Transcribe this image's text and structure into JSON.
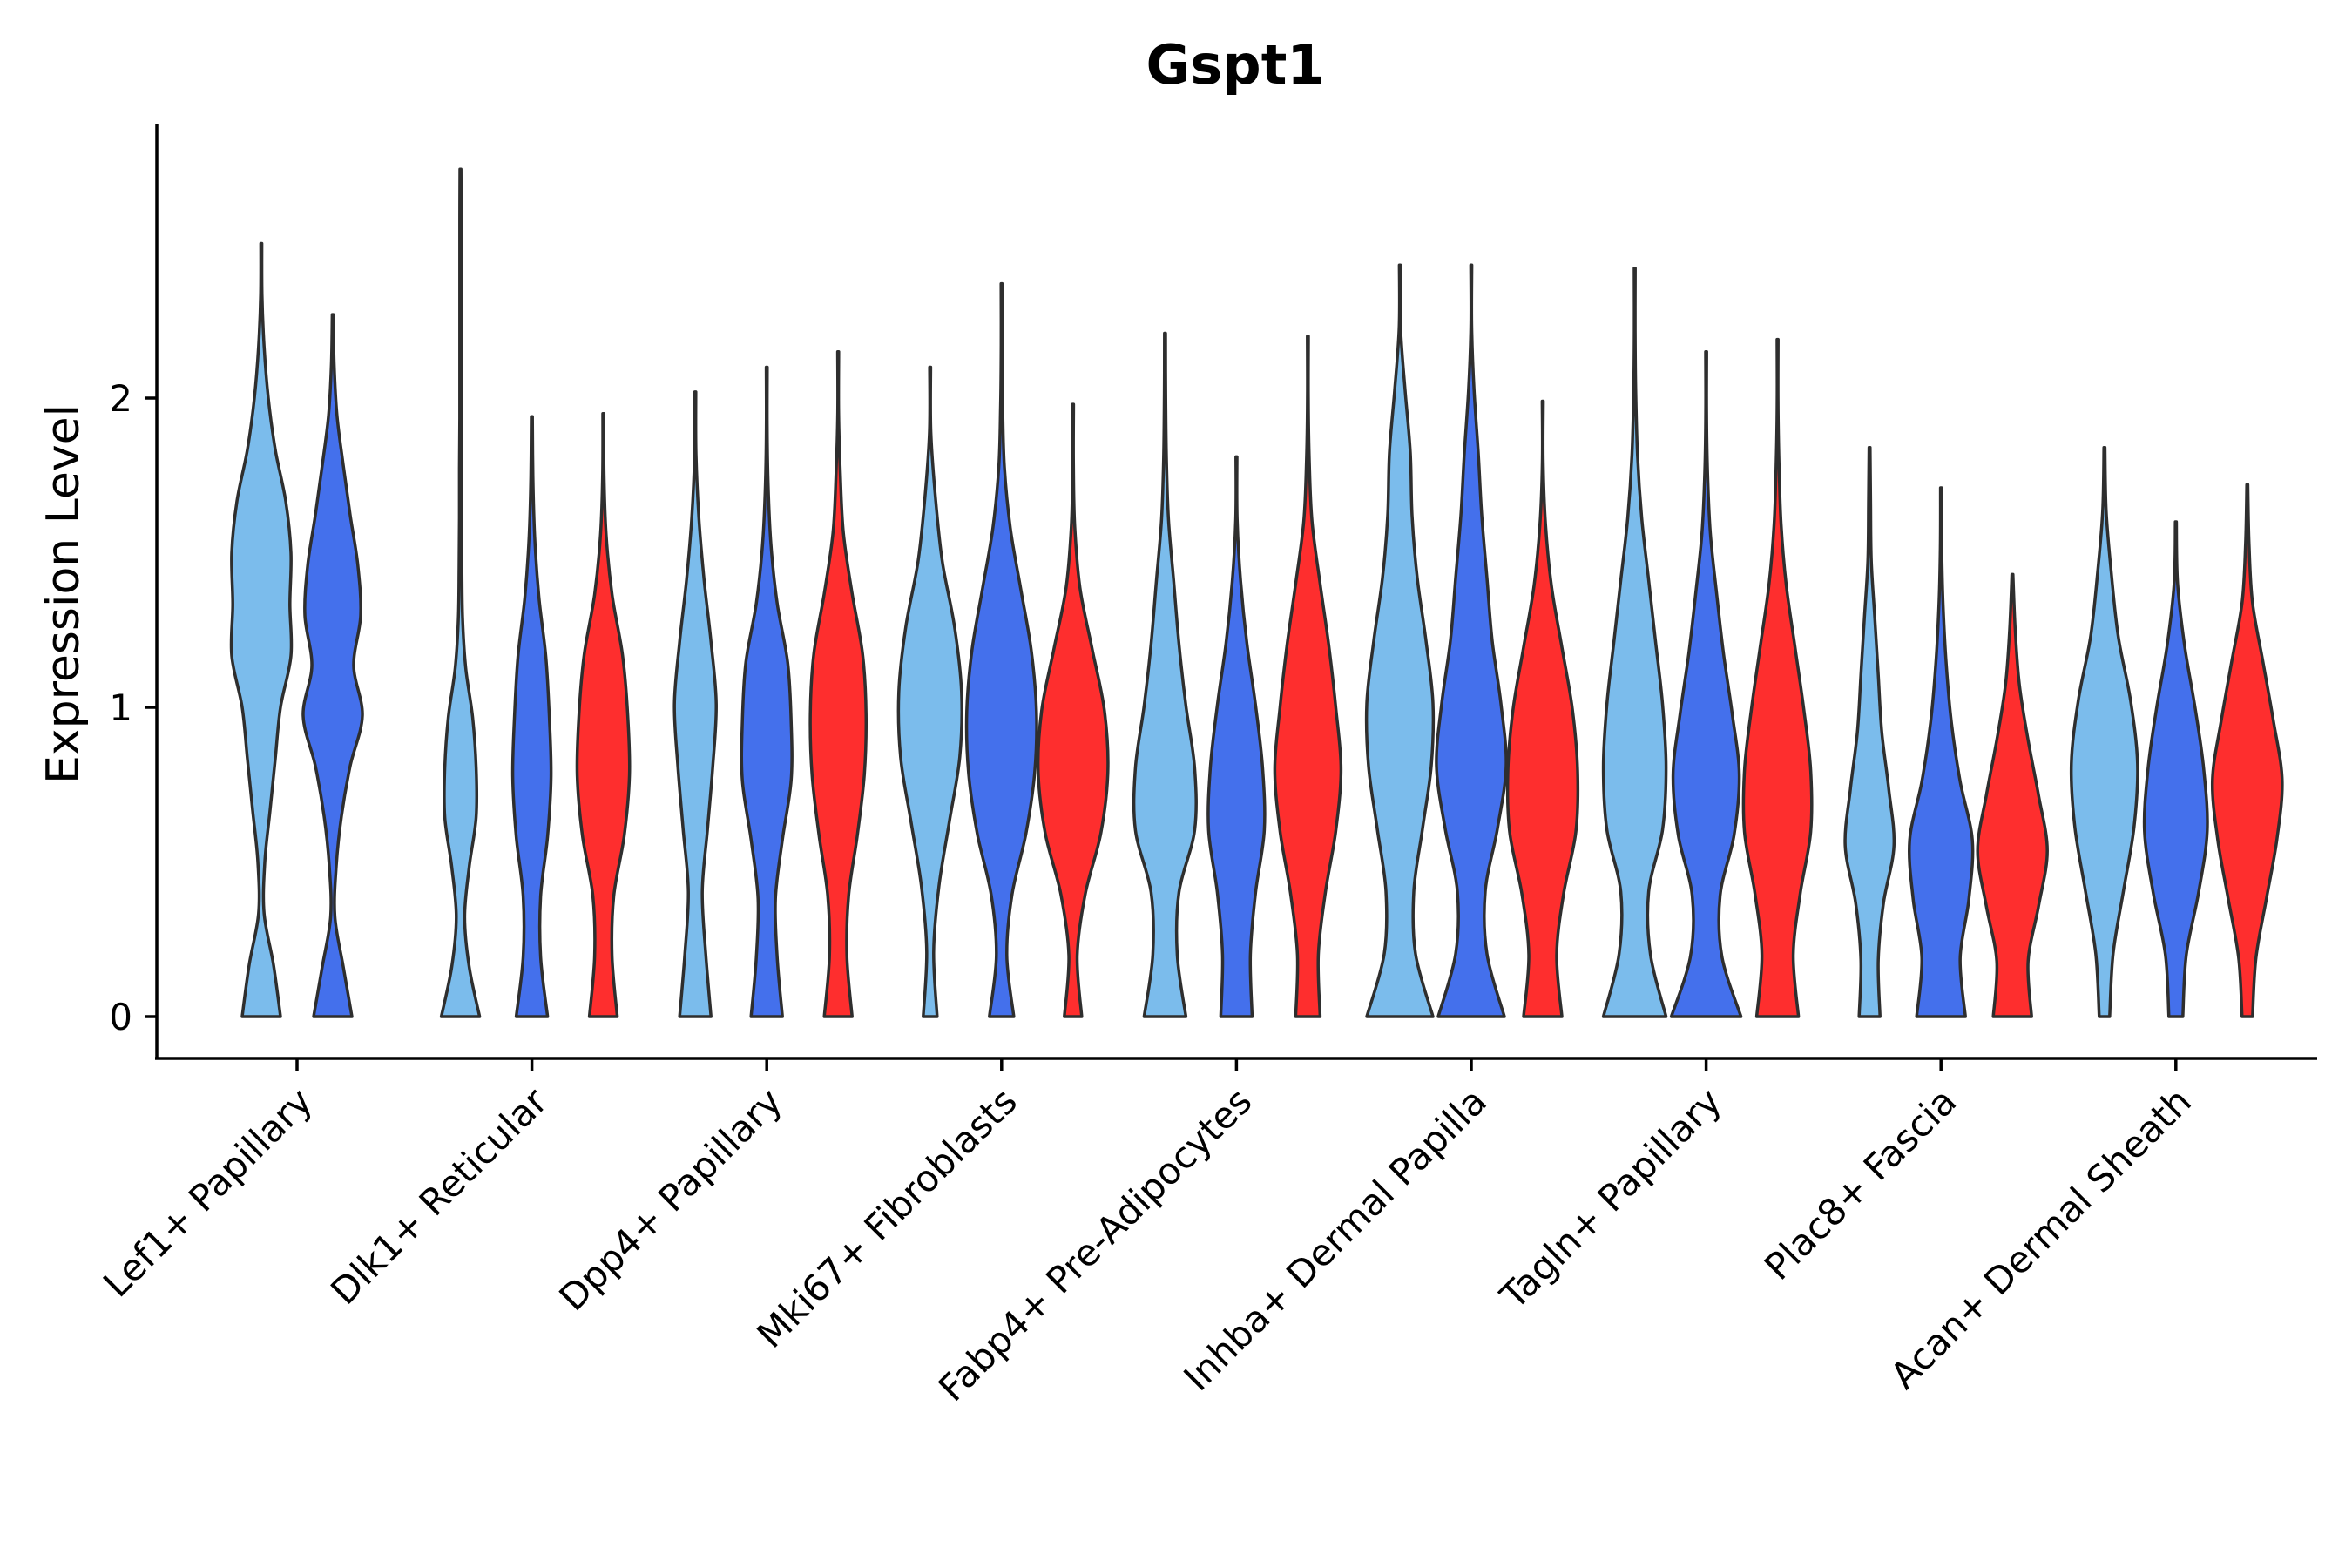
{
  "chart_data": {
    "type": "violin",
    "title": "Gspt1",
    "xlabel": "",
    "ylabel": "Expression Level",
    "ylim": [
      -0.14,
      2.9
    ],
    "yticks": [
      0,
      1,
      2
    ],
    "group_colors": [
      "#7bbcec",
      "#4470ec",
      "#fe2e2e"
    ],
    "categories": [
      {
        "label": "Lef1+ Papillary",
        "violins": [
          {
            "group": 0,
            "max": 2.5,
            "w": [
              0.55,
              0.35,
              0.08,
              0.1,
              0.25,
              0.4,
              0.55,
              0.85,
              0.82,
              0.85,
              0.7,
              0.4,
              0.2,
              0.08,
              0.02
            ]
          },
          {
            "group": 1,
            "max": 2.27,
            "w": [
              0.55,
              0.3,
              0.06,
              0.1,
              0.25,
              0.5,
              0.85,
              0.6,
              0.8,
              0.72,
              0.5,
              0.3,
              0.12,
              0.04
            ]
          }
        ]
      },
      {
        "label": "Dlk1+ Reticular",
        "violins": [
          {
            "group": 0,
            "max": 2.74,
            "w": [
              0.55,
              0.25,
              0.12,
              0.25,
              0.45,
              0.45,
              0.35,
              0.15,
              0.06,
              0.04,
              0.03,
              0.03,
              0.02,
              0.02,
              0.02,
              0.02,
              0.02
            ]
          },
          {
            "group": 1,
            "max": 1.94,
            "w": [
              0.45,
              0.25,
              0.25,
              0.45,
              0.55,
              0.5,
              0.4,
              0.2,
              0.08,
              0.03
            ]
          },
          {
            "group": 2,
            "max": 1.95,
            "w": [
              0.4,
              0.25,
              0.3,
              0.6,
              0.75,
              0.7,
              0.55,
              0.25,
              0.08,
              0.02
            ]
          }
        ]
      },
      {
        "label": "Dpp4+ Papillary",
        "violins": [
          {
            "group": 0,
            "max": 2.02,
            "w": [
              0.45,
              0.3,
              0.2,
              0.35,
              0.5,
              0.6,
              0.45,
              0.25,
              0.1,
              0.02
            ]
          },
          {
            "group": 1,
            "max": 2.1,
            "w": [
              0.45,
              0.3,
              0.25,
              0.45,
              0.7,
              0.7,
              0.6,
              0.3,
              0.12,
              0.04,
              0.01
            ]
          },
          {
            "group": 2,
            "max": 2.15,
            "w": [
              0.4,
              0.25,
              0.3,
              0.55,
              0.75,
              0.8,
              0.7,
              0.4,
              0.15,
              0.06,
              0.01
            ]
          }
        ]
      },
      {
        "label": "Mki67+ Fibroblasts",
        "violins": [
          {
            "group": 0,
            "max": 2.1,
            "w": [
              0.2,
              0.1,
              0.25,
              0.55,
              0.85,
              0.9,
              0.7,
              0.35,
              0.15,
              0.02
            ]
          },
          {
            "group": 1,
            "max": 2.37,
            "w": [
              0.35,
              0.15,
              0.3,
              0.7,
              0.95,
              1.0,
              0.85,
              0.55,
              0.25,
              0.08,
              0.03,
              0.01
            ]
          },
          {
            "group": 2,
            "max": 1.98,
            "w": [
              0.25,
              0.12,
              0.35,
              0.8,
              1.0,
              0.9,
              0.55,
              0.2,
              0.05,
              0.01
            ]
          }
        ]
      },
      {
        "label": "Fabp4+ Pre-Adipocytes",
        "violins": [
          {
            "group": 0,
            "max": 2.21,
            "w": [
              0.6,
              0.35,
              0.4,
              0.85,
              0.85,
              0.6,
              0.4,
              0.25,
              0.1,
              0.04,
              0.02
            ]
          },
          {
            "group": 1,
            "max": 1.81,
            "w": [
              0.45,
              0.4,
              0.55,
              0.8,
              0.75,
              0.55,
              0.3,
              0.12,
              0.02
            ]
          },
          {
            "group": 2,
            "max": 2.2,
            "w": [
              0.35,
              0.3,
              0.5,
              0.8,
              0.95,
              0.8,
              0.6,
              0.35,
              0.12,
              0.04,
              0.01
            ]
          }
        ]
      },
      {
        "label": "Inhba+ Dermal Papilla",
        "violins": [
          {
            "group": 0,
            "max": 2.43,
            "w": [
              0.95,
              0.45,
              0.4,
              0.65,
              0.9,
              0.95,
              0.75,
              0.5,
              0.35,
              0.3,
              0.15,
              0.02
            ]
          },
          {
            "group": 1,
            "max": 2.43,
            "w": [
              0.95,
              0.45,
              0.4,
              0.75,
              1.0,
              0.85,
              0.6,
              0.45,
              0.3,
              0.2,
              0.08,
              0.01
            ]
          },
          {
            "group": 2,
            "max": 1.99,
            "w": [
              0.55,
              0.4,
              0.6,
              0.95,
              1.0,
              0.85,
              0.55,
              0.25,
              0.08,
              0.01
            ]
          }
        ]
      },
      {
        "label": "Tagln+ Papillary",
        "violins": [
          {
            "group": 0,
            "max": 2.42,
            "w": [
              0.9,
              0.45,
              0.4,
              0.8,
              0.9,
              0.8,
              0.6,
              0.4,
              0.2,
              0.08,
              0.03,
              0.01
            ]
          },
          {
            "group": 1,
            "max": 2.15,
            "w": [
              1.0,
              0.45,
              0.4,
              0.8,
              0.95,
              0.75,
              0.5,
              0.3,
              0.12,
              0.04,
              0.01
            ]
          },
          {
            "group": 2,
            "max": 2.19,
            "w": [
              0.6,
              0.45,
              0.65,
              0.95,
              0.95,
              0.75,
              0.5,
              0.25,
              0.1,
              0.04,
              0.01
            ]
          }
        ]
      },
      {
        "label": "Plac8+ Fascia",
        "violins": [
          {
            "group": 0,
            "max": 1.84,
            "w": [
              0.3,
              0.25,
              0.4,
              0.7,
              0.55,
              0.35,
              0.25,
              0.15,
              0.05,
              0.03
            ]
          },
          {
            "group": 1,
            "max": 1.71,
            "w": [
              0.7,
              0.55,
              0.8,
              0.9,
              0.55,
              0.3,
              0.15,
              0.06,
              0.02
            ]
          },
          {
            "group": 2,
            "max": 1.43,
            "w": [
              0.55,
              0.45,
              0.75,
              1.0,
              0.75,
              0.45,
              0.2,
              0.08
            ]
          }
        ]
      },
      {
        "label": "Acan+ Dermal Sheath",
        "violins": [
          {
            "group": 0,
            "max": 1.84,
            "w": [
              0.15,
              0.25,
              0.55,
              0.85,
              0.95,
              0.75,
              0.4,
              0.2,
              0.05
            ]
          },
          {
            "group": 1,
            "max": 1.6,
            "w": [
              0.2,
              0.3,
              0.65,
              0.9,
              0.8,
              0.55,
              0.25,
              0.05
            ]
          },
          {
            "group": 2,
            "max": 1.72,
            "w": [
              0.15,
              0.25,
              0.55,
              0.85,
              1.0,
              0.75,
              0.45,
              0.15,
              0.05
            ]
          }
        ]
      }
    ]
  }
}
